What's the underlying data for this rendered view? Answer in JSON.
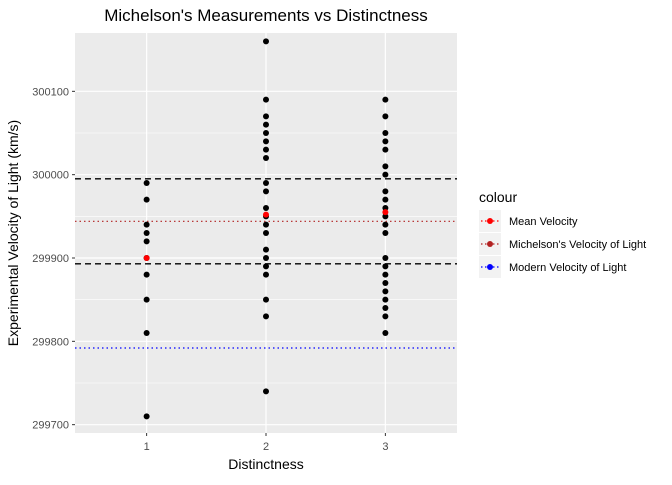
{
  "chart_data": {
    "type": "scatter",
    "title": "Michelson's Measurements vs Distinctness",
    "xlabel": "Distinctness",
    "ylabel": "Experimental Velocity of Light (km/s)",
    "categories": [
      "1",
      "2",
      "3"
    ],
    "ylim": [
      299690,
      300170
    ],
    "yticks": [
      299700,
      299800,
      299900,
      300000,
      300100
    ],
    "points": [
      {
        "x": "1",
        "values": [
          299990,
          299970,
          299940,
          299930,
          299920,
          299900,
          299880,
          299850,
          299810,
          299710
        ]
      },
      {
        "x": "2",
        "values": [
          300160,
          300090,
          300070,
          300060,
          300050,
          300040,
          300030,
          300020,
          299990,
          299980,
          299960,
          299950,
          299940,
          299930,
          299910,
          299900,
          299890,
          299880,
          299850,
          299830,
          299740
        ]
      },
      {
        "x": "3",
        "values": [
          300090,
          300070,
          300050,
          300040,
          300030,
          300010,
          300000,
          299980,
          299970,
          299960,
          299950,
          299940,
          299930,
          299900,
          299890,
          299880,
          299870,
          299860,
          299850,
          299840,
          299830,
          299810
        ]
      }
    ],
    "means": [
      {
        "x": "1",
        "value": 299900
      },
      {
        "x": "2",
        "value": 299952
      },
      {
        "x": "3",
        "value": 299955
      }
    ],
    "hlines": [
      {
        "name": "upper-bound",
        "value": 299995,
        "color": "#000000",
        "style": "dashed"
      },
      {
        "name": "lower-bound",
        "value": 299893,
        "color": "#000000",
        "style": "dashed"
      },
      {
        "name": "michelson-velocity",
        "value": 299944,
        "color": "#b22222",
        "style": "dotted"
      },
      {
        "name": "modern-velocity",
        "value": 299792,
        "color": "#0000ff",
        "style": "dotted"
      }
    ],
    "legend": {
      "title": "colour",
      "position": "right",
      "entries": [
        {
          "label": "Mean Velocity",
          "color": "#ff0000"
        },
        {
          "label": "Michelson's Velocity of Light",
          "color": "#b22222"
        },
        {
          "label": "Modern Velocity of Light",
          "color": "#0000ff"
        }
      ]
    }
  }
}
